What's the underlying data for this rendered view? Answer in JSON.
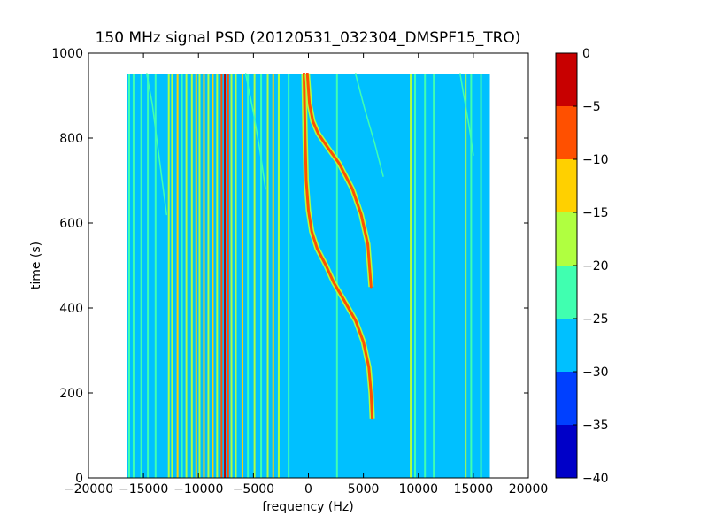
{
  "chart_data": {
    "type": "heatmap",
    "title": "150 MHz signal PSD (20120531_032304_DMSPF15_TRO)",
    "xlabel": "frequency (Hz)",
    "ylabel": "time (s)",
    "xlim": [
      -20000,
      20000
    ],
    "ylim": [
      0,
      1000
    ],
    "xticks": [
      -20000,
      -15000,
      -10000,
      -5000,
      0,
      5000,
      10000,
      15000,
      20000
    ],
    "xtick_labels": [
      "−20000",
      "−15000",
      "−10000",
      "−5000",
      "0",
      "5000",
      "10000",
      "15000",
      "20000"
    ],
    "yticks": [
      0,
      200,
      400,
      600,
      800,
      1000
    ],
    "ytick_labels": [
      "0",
      "200",
      "400",
      "600",
      "800",
      "1000"
    ],
    "data_extent": {
      "f_min": -16500,
      "f_max": 16500,
      "t_min": 0,
      "t_max": 950
    },
    "background_level": -27.5,
    "colorbar": {
      "levels": [
        -40,
        -35,
        -30,
        -25,
        -20,
        -15,
        -10,
        -5,
        0
      ],
      "tick_labels": [
        "−40",
        "−35",
        "−30",
        "−25",
        "−20",
        "−15",
        "−10",
        "−5",
        "0"
      ],
      "colors": [
        "#0000c8",
        "#0040ff",
        "#00c0ff",
        "#40ffb0",
        "#b0ff40",
        "#ffd000",
        "#ff5000",
        "#c80000"
      ]
    },
    "vertical_lines": [
      {
        "f": -16300,
        "level": -22.5
      },
      {
        "f": -15900,
        "level": -22.5
      },
      {
        "f": -15200,
        "level": -22.5
      },
      {
        "f": -14600,
        "level": -22.5
      },
      {
        "f": -13900,
        "level": -22.5
      },
      {
        "f": -12700,
        "level": -17.5
      },
      {
        "f": -12400,
        "level": -17.5
      },
      {
        "f": -11900,
        "level": -12.5
      },
      {
        "f": -11500,
        "level": -22.5
      },
      {
        "f": -11100,
        "level": -17.5
      },
      {
        "f": -10600,
        "level": -17.5
      },
      {
        "f": -10200,
        "level": -12.5
      },
      {
        "f": -9900,
        "level": -17.5
      },
      {
        "f": -9500,
        "level": -12.5
      },
      {
        "f": -9100,
        "level": -17.5
      },
      {
        "f": -8700,
        "level": -12.5
      },
      {
        "f": -8300,
        "level": -17.5
      },
      {
        "f": -7900,
        "level": -7.5
      },
      {
        "f": -7600,
        "level": -2.5
      },
      {
        "f": -7300,
        "level": -7.5
      },
      {
        "f": -7000,
        "level": -17.5
      },
      {
        "f": -6600,
        "level": -17.5
      },
      {
        "f": -6000,
        "level": -12.5
      },
      {
        "f": -5500,
        "level": -22.5
      },
      {
        "f": -4900,
        "level": -17.5
      },
      {
        "f": -4300,
        "level": -22.5
      },
      {
        "f": -3700,
        "level": -17.5
      },
      {
        "f": -3200,
        "level": -12.5
      },
      {
        "f": -2700,
        "level": -17.5
      },
      {
        "f": -1800,
        "level": -22.5
      },
      {
        "f": 2600,
        "level": -22.5
      },
      {
        "f": 9300,
        "level": -17.5
      },
      {
        "f": 9700,
        "level": -22.5
      },
      {
        "f": 10600,
        "level": -22.5
      },
      {
        "f": 11400,
        "level": -22.5
      },
      {
        "f": 14300,
        "level": -17.5
      },
      {
        "f": 14800,
        "level": -22.5
      },
      {
        "f": 15700,
        "level": -22.5
      }
    ],
    "tracks": [
      {
        "name": "satellite-pass-1",
        "level": -7.5,
        "points": [
          [
            5800,
            140
          ],
          [
            5700,
            200
          ],
          [
            5500,
            260
          ],
          [
            5000,
            320
          ],
          [
            4300,
            370
          ],
          [
            3200,
            420
          ],
          [
            2300,
            460
          ],
          [
            1600,
            500
          ],
          [
            800,
            540
          ],
          [
            300,
            580
          ],
          [
            0,
            630
          ],
          [
            -200,
            700
          ],
          [
            -300,
            800
          ],
          [
            -400,
            950
          ]
        ]
      },
      {
        "name": "satellite-pass-2",
        "level": -7.5,
        "points": [
          [
            5700,
            450
          ],
          [
            5400,
            550
          ],
          [
            4800,
            620
          ],
          [
            4000,
            680
          ],
          [
            2800,
            740
          ],
          [
            1700,
            780
          ],
          [
            900,
            810
          ],
          [
            400,
            840
          ],
          [
            100,
            880
          ],
          [
            -100,
            950
          ]
        ]
      },
      {
        "name": "faint-drift-left",
        "level": -22.5,
        "points": [
          [
            -14700,
            950
          ],
          [
            -14200,
            880
          ],
          [
            -13800,
            800
          ],
          [
            -13300,
            700
          ],
          [
            -12900,
            620
          ]
        ]
      },
      {
        "name": "faint-drift-mid",
        "level": -22.5,
        "points": [
          [
            -5700,
            950
          ],
          [
            -5000,
            860
          ],
          [
            -4400,
            770
          ],
          [
            -3900,
            680
          ]
        ]
      },
      {
        "name": "faint-drift-right",
        "level": -22.5,
        "points": [
          [
            4300,
            950
          ],
          [
            5100,
            870
          ],
          [
            6000,
            790
          ],
          [
            6800,
            710
          ]
        ]
      },
      {
        "name": "faint-drift-far-right",
        "level": -22.5,
        "points": [
          [
            13800,
            950
          ],
          [
            14200,
            890
          ],
          [
            14600,
            830
          ],
          [
            15000,
            760
          ]
        ]
      }
    ]
  }
}
